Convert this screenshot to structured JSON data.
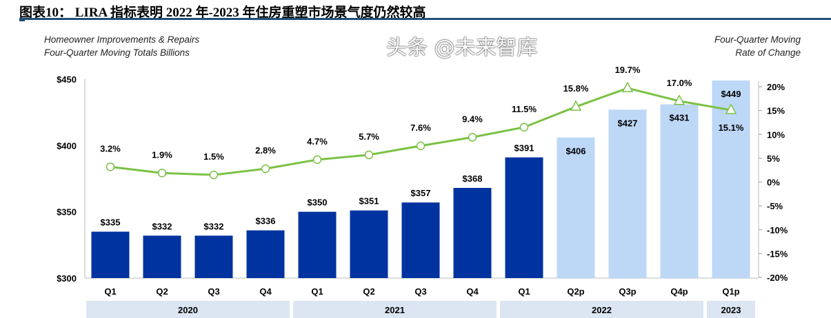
{
  "title": "图表10： LIRA 指标表明 2022 年-2023 年住房重塑市场景气度仍然较高",
  "watermark": "头条 @未来智库",
  "chart_data": {
    "type": "bar+line",
    "left_axis_title": [
      "Homeowner Improvements & Repairs",
      "Four-Quarter Moving Totals Billions"
    ],
    "right_axis_title": [
      "Four-Quarter Moving",
      "Rate of Change"
    ],
    "categories": [
      "Q1",
      "Q2",
      "Q3",
      "Q4",
      "Q1",
      "Q2",
      "Q3",
      "Q4",
      "Q1",
      "Q2p",
      "Q3p",
      "Q4p",
      "Q1p"
    ],
    "years": [
      {
        "label": "2020",
        "span": 4
      },
      {
        "label": "2021",
        "span": 4
      },
      {
        "label": "2022",
        "span": 4
      },
      {
        "label": "2023",
        "span": 1
      }
    ],
    "bars": {
      "values": [
        335,
        332,
        332,
        336,
        350,
        351,
        357,
        368,
        391,
        406,
        427,
        431,
        449
      ],
      "labels": [
        "$335",
        "$332",
        "$332",
        "$336",
        "$350",
        "$351",
        "$357",
        "$368",
        "$391",
        "$406",
        "$427",
        "$431",
        "$449"
      ],
      "projected_from_index": 9,
      "colors": {
        "actual": "#0033a0",
        "projected": "#bdd7f7"
      }
    },
    "line": {
      "values": [
        3.2,
        1.9,
        1.5,
        2.8,
        4.7,
        5.7,
        7.6,
        9.4,
        11.5,
        15.8,
        19.7,
        17.0,
        15.1
      ],
      "labels": [
        "3.2%",
        "1.9%",
        "1.5%",
        "2.8%",
        "4.7%",
        "5.7%",
        "7.6%",
        "9.4%",
        "11.5%",
        "15.8%",
        "19.7%",
        "17.0%",
        "15.1%"
      ],
      "color": "#7ac143",
      "projected_from_index": 9
    },
    "left_axis": {
      "ylim": [
        300,
        450
      ],
      "ticks": [
        "$300",
        "$350",
        "$400",
        "$450"
      ],
      "tick_values": [
        300,
        350,
        400,
        450
      ]
    },
    "right_axis": {
      "ylim": [
        -20,
        20
      ],
      "ticks": [
        "-20%",
        "-15%",
        "-10%",
        "-5%",
        "0%",
        "5%",
        "10%",
        "15%",
        "20%"
      ],
      "tick_values": [
        -20,
        -15,
        -10,
        -5,
        0,
        5,
        10,
        15,
        20
      ]
    },
    "grid": false
  }
}
